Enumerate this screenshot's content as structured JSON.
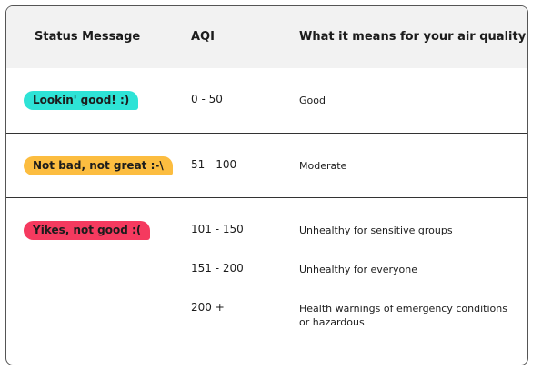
{
  "table": {
    "headers": [
      "Status Message",
      "AQI",
      "What it means for your air quality"
    ],
    "rows": [
      {
        "status": "Lookin' good! :)",
        "color": "#2ee3d6",
        "entries": [
          {
            "aqi": "0 - 50",
            "meaning": "Good"
          }
        ]
      },
      {
        "status": "Not bad, not great :-\\",
        "color": "#fcbd40",
        "entries": [
          {
            "aqi": "51 - 100",
            "meaning": "Moderate"
          }
        ]
      },
      {
        "status": "Yikes, not good :(",
        "color": "#f53a5f",
        "entries": [
          {
            "aqi": "101 - 150",
            "meaning": "Unhealthy for sensitive groups"
          },
          {
            "aqi": "151 - 200",
            "meaning": "Unhealthy for everyone"
          },
          {
            "aqi": "200 +",
            "meaning": "Health warnings of emergency conditions or hazardous"
          }
        ]
      }
    ]
  }
}
